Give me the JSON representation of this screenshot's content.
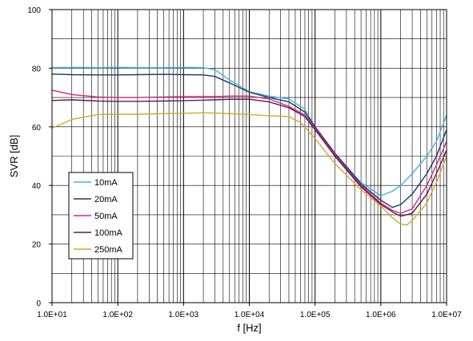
{
  "chart_data": {
    "type": "line",
    "title": "",
    "xlabel": "f [Hz]",
    "ylabel": "SVR [dB]",
    "xscale": "log",
    "xlim": [
      10,
      10000000
    ],
    "ylim": [
      0,
      100
    ],
    "x_ticks": [
      "1.0E+01",
      "1.0E+02",
      "1.0E+03",
      "1.0E+04",
      "1.0E+05",
      "1.0E+06",
      "1.0E+07"
    ],
    "y_ticks": [
      "0",
      "20",
      "40",
      "60",
      "80",
      "100"
    ],
    "grid": true,
    "legend_position": "bottom-left",
    "series": [
      {
        "name": "10mA",
        "color": "#41b4e1",
        "points": [
          [
            10,
            80.2
          ],
          [
            20,
            80.3
          ],
          [
            50,
            80.2
          ],
          [
            100,
            80.3
          ],
          [
            200,
            80.2
          ],
          [
            500,
            80.2
          ],
          [
            1000,
            80.3
          ],
          [
            2000,
            80.2
          ],
          [
            3000,
            79.5
          ],
          [
            5000,
            76
          ],
          [
            10000,
            72
          ],
          [
            20000,
            70.5
          ],
          [
            40000,
            69.5
          ],
          [
            70000,
            66
          ],
          [
            100000,
            60
          ],
          [
            200000,
            51
          ],
          [
            500000,
            41
          ],
          [
            1000000,
            36.5
          ],
          [
            1500000,
            38
          ],
          [
            2000000,
            40
          ],
          [
            3000000,
            44
          ],
          [
            5000000,
            50
          ],
          [
            7000000,
            55
          ],
          [
            10000000,
            64
          ]
        ]
      },
      {
        "name": "20mA",
        "color": "#1f3864",
        "points": [
          [
            10,
            78
          ],
          [
            20,
            77.8
          ],
          [
            50,
            77.7
          ],
          [
            100,
            77.7
          ],
          [
            200,
            77.8
          ],
          [
            500,
            77.9
          ],
          [
            1000,
            77.8
          ],
          [
            2000,
            77.7
          ],
          [
            3000,
            77.2
          ],
          [
            5000,
            75
          ],
          [
            10000,
            71.8
          ],
          [
            20000,
            70
          ],
          [
            40000,
            68.5
          ],
          [
            70000,
            65
          ],
          [
            100000,
            60
          ],
          [
            200000,
            51
          ],
          [
            500000,
            40.5
          ],
          [
            1000000,
            35
          ],
          [
            1500000,
            32.5
          ],
          [
            2000000,
            33.5
          ],
          [
            3000000,
            37
          ],
          [
            5000000,
            44
          ],
          [
            7000000,
            50
          ],
          [
            10000000,
            59
          ]
        ]
      },
      {
        "name": "50mA",
        "color": "#d6257d",
        "points": [
          [
            10,
            72.5
          ],
          [
            20,
            71
          ],
          [
            50,
            70.2
          ],
          [
            100,
            70
          ],
          [
            200,
            70
          ],
          [
            500,
            70.2
          ],
          [
            1000,
            70.3
          ],
          [
            2000,
            70.3
          ],
          [
            3000,
            70.3
          ],
          [
            5000,
            70.5
          ],
          [
            10000,
            70.5
          ],
          [
            20000,
            69.5
          ],
          [
            40000,
            67
          ],
          [
            70000,
            64
          ],
          [
            100000,
            59.5
          ],
          [
            200000,
            50.5
          ],
          [
            500000,
            40
          ],
          [
            1000000,
            34
          ],
          [
            1500000,
            31.5
          ],
          [
            2000000,
            30.5
          ],
          [
            3000000,
            32
          ],
          [
            5000000,
            40
          ],
          [
            7000000,
            47
          ],
          [
            10000000,
            55
          ]
        ]
      },
      {
        "name": "100mA",
        "color": "#5a1a5a",
        "points": [
          [
            10,
            69
          ],
          [
            20,
            69.2
          ],
          [
            50,
            68.8
          ],
          [
            100,
            68.7
          ],
          [
            200,
            68.7
          ],
          [
            500,
            68.8
          ],
          [
            1000,
            68.9
          ],
          [
            2000,
            69.1
          ],
          [
            3000,
            69.2
          ],
          [
            5000,
            69.4
          ],
          [
            10000,
            69.4
          ],
          [
            20000,
            68.5
          ],
          [
            40000,
            66.5
          ],
          [
            70000,
            63.5
          ],
          [
            100000,
            59
          ],
          [
            200000,
            50
          ],
          [
            500000,
            39.5
          ],
          [
            1000000,
            33.5
          ],
          [
            1500000,
            31
          ],
          [
            2000000,
            29.5
          ],
          [
            3000000,
            30.5
          ],
          [
            5000000,
            37
          ],
          [
            7000000,
            44
          ],
          [
            10000000,
            52
          ]
        ]
      },
      {
        "name": "250mA",
        "color": "#d4a72c",
        "points": [
          [
            10,
            59.5
          ],
          [
            20,
            62.5
          ],
          [
            50,
            64.2
          ],
          [
            100,
            64.3
          ],
          [
            200,
            64.3
          ],
          [
            500,
            64.5
          ],
          [
            1000,
            64.6
          ],
          [
            2000,
            64.8
          ],
          [
            3000,
            64.7
          ],
          [
            5000,
            64.5
          ],
          [
            10000,
            64.2
          ],
          [
            20000,
            63.8
          ],
          [
            40000,
            63.5
          ],
          [
            60000,
            61.5
          ],
          [
            100000,
            56
          ],
          [
            200000,
            47.5
          ],
          [
            500000,
            38.5
          ],
          [
            1000000,
            33
          ],
          [
            1500000,
            29
          ],
          [
            2000000,
            26.8
          ],
          [
            2500000,
            26.5
          ],
          [
            3000000,
            28
          ],
          [
            5000000,
            34
          ],
          [
            7000000,
            41
          ],
          [
            10000000,
            50
          ]
        ]
      }
    ]
  }
}
